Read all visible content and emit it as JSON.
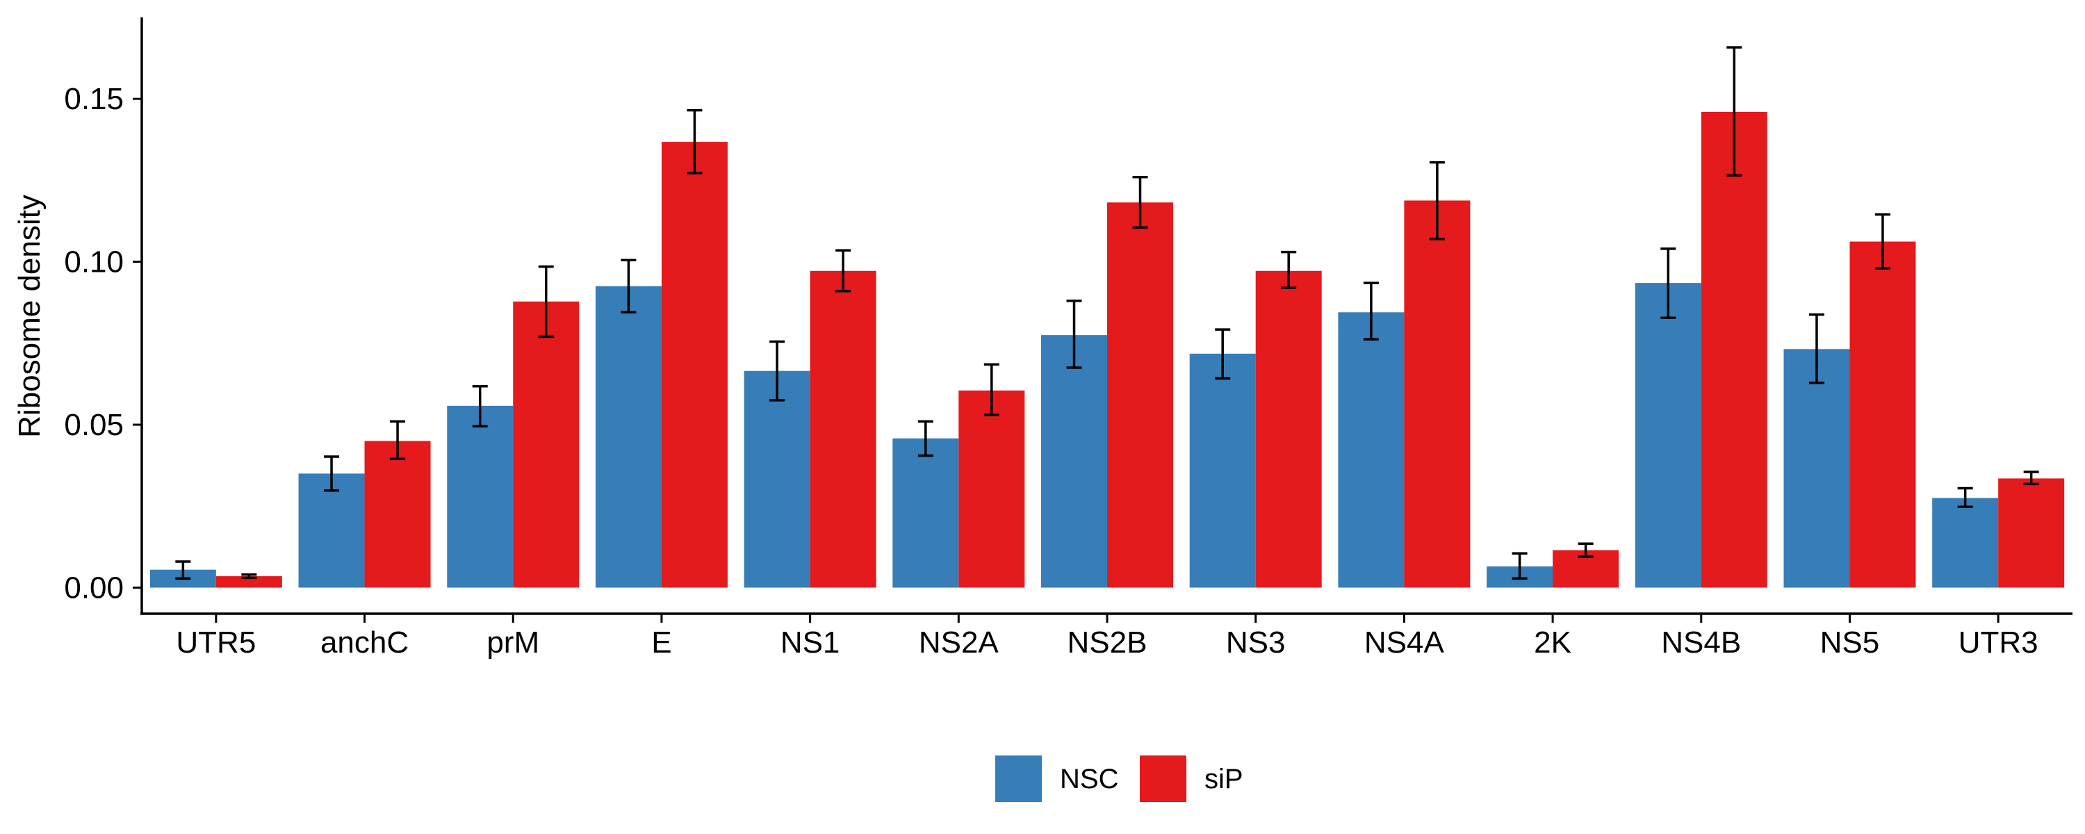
{
  "chart_data": {
    "type": "bar",
    "title": "",
    "xlabel": "",
    "ylabel": "Ribosome density",
    "ylim": [
      -0.008,
      0.175
    ],
    "yticks": [
      0.0,
      0.05,
      0.1,
      0.15
    ],
    "ytick_labels": [
      "0.00",
      "0.05",
      "0.10",
      "0.15"
    ],
    "grid": false,
    "legend_position": "bottom",
    "categories": [
      "UTR5",
      "anchC",
      "prM",
      "E",
      "NS1",
      "NS2A",
      "NS2B",
      "NS3",
      "NS4A",
      "2K",
      "NS4B",
      "NS5",
      "UTR3"
    ],
    "series": [
      {
        "name": "NSC",
        "color": "#377EB8",
        "values": [
          0.0055,
          0.035,
          0.0558,
          0.0925,
          0.0665,
          0.0458,
          0.0775,
          0.0718,
          0.0845,
          0.0065,
          0.0935,
          0.0732,
          0.0275
        ],
        "err_low": [
          0.0028,
          0.0298,
          0.0495,
          0.0845,
          0.0575,
          0.0405,
          0.0675,
          0.0642,
          0.0762,
          0.0028,
          0.0828,
          0.0628,
          0.0248
        ],
        "err_high": [
          0.008,
          0.0402,
          0.0618,
          0.1005,
          0.0755,
          0.051,
          0.088,
          0.0792,
          0.0935,
          0.0105,
          0.104,
          0.0838,
          0.0305
        ]
      },
      {
        "name": "siP",
        "color": "#E41A1C",
        "values": [
          0.0035,
          0.045,
          0.0878,
          0.1368,
          0.0972,
          0.0605,
          0.1182,
          0.0972,
          0.1188,
          0.0115,
          0.146,
          0.1062,
          0.0335
        ],
        "err_low": [
          0.003,
          0.0395,
          0.077,
          0.1272,
          0.091,
          0.053,
          0.1105,
          0.092,
          0.107,
          0.0095,
          0.1265,
          0.098,
          0.0318
        ],
        "err_high": [
          0.004,
          0.051,
          0.0985,
          0.1465,
          0.1035,
          0.0685,
          0.126,
          0.103,
          0.1305,
          0.0135,
          0.1658,
          0.1145,
          0.0355
        ]
      }
    ]
  }
}
